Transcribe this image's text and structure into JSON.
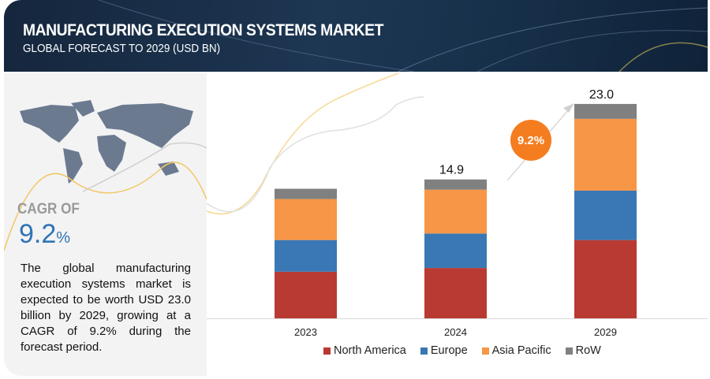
{
  "header": {
    "title": "MANUFACTURING EXECUTION SYSTEMS MARKET",
    "subtitle": "GLOBAL FORECAST TO 2029 (USD BN)"
  },
  "left": {
    "cagr_label": "CAGR OF",
    "cagr_value": "9.2",
    "cagr_unit": "%",
    "description": "The global manufacturing execution systems market is expected to be worth USD 23.0 billion by 2029, growing at a CAGR of 9.2% during the forecast period."
  },
  "chart_data": {
    "type": "bar",
    "stacked": true,
    "categories": [
      "2023",
      "2024",
      "2029"
    ],
    "series": [
      {
        "name": "North America",
        "color": "#b83a32",
        "values": [
          5.0,
          5.4,
          8.4
        ]
      },
      {
        "name": "Europe",
        "color": "#3a78b5",
        "values": [
          3.4,
          3.7,
          5.3
        ]
      },
      {
        "name": "Asia Pacific",
        "color": "#f79646",
        "values": [
          4.4,
          4.7,
          7.7
        ]
      },
      {
        "name": "RoW",
        "color": "#808080",
        "values": [
          1.1,
          1.1,
          1.6
        ]
      }
    ],
    "total_labels": [
      "",
      "14.9",
      "23.0"
    ],
    "annotation": "9.2%",
    "ylim": [
      0,
      23.5
    ],
    "legend": "bottom"
  }
}
